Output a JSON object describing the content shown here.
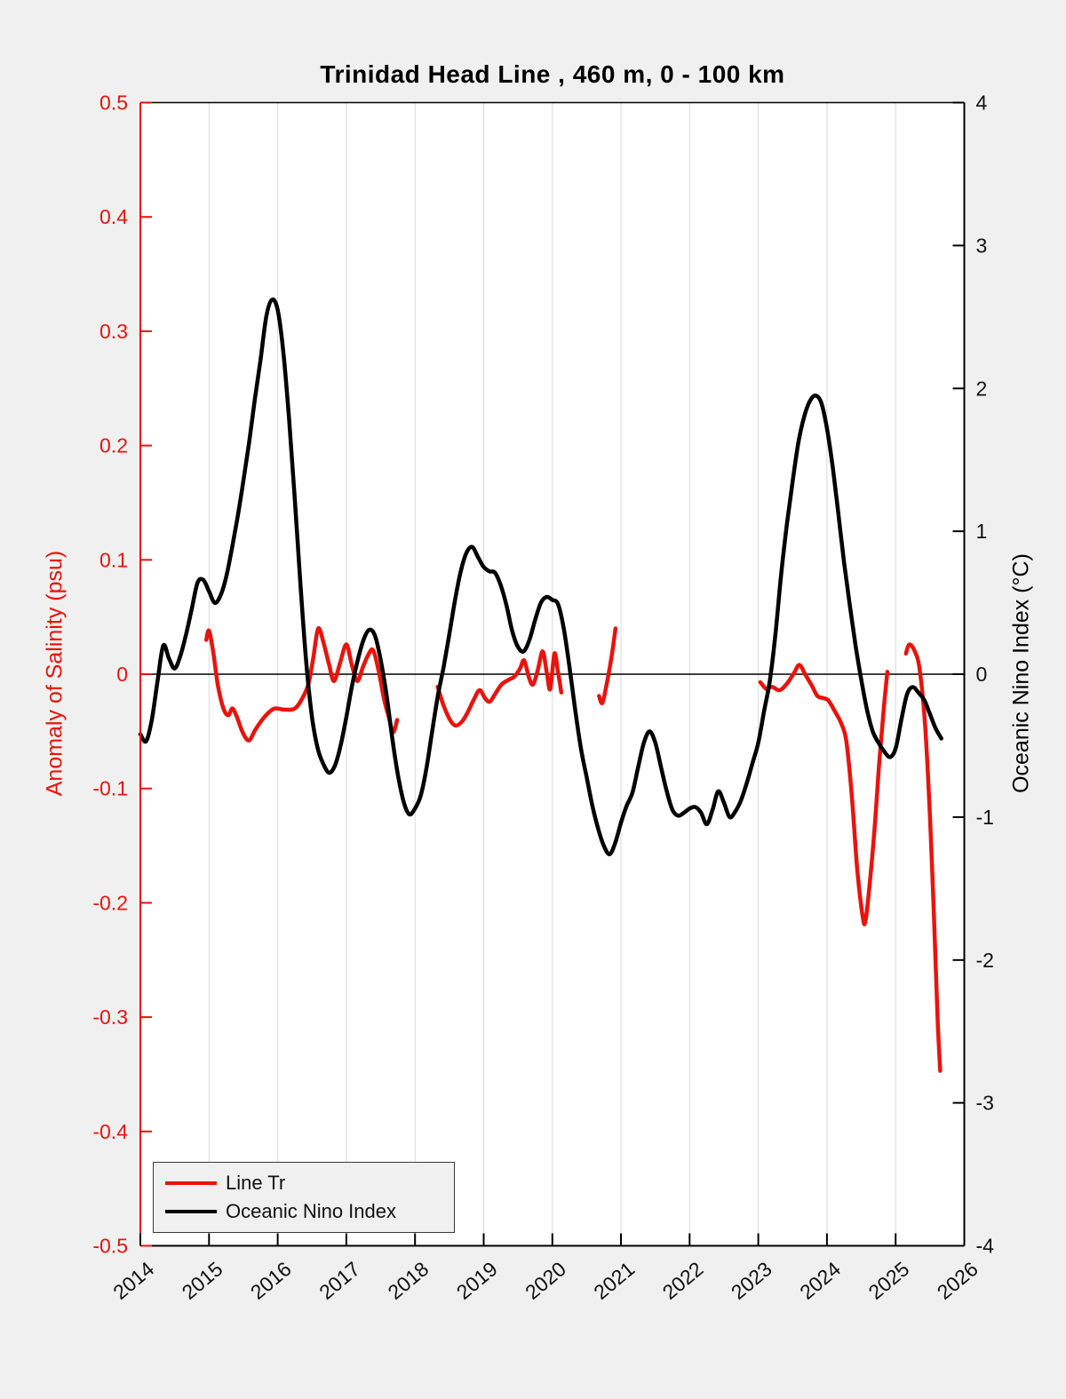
{
  "title": "Trinidad Head Line , 460 m, 0 - 100 km",
  "theme": {
    "figure_bg": "#f0f0f0",
    "plot_bg": "#ffffff",
    "grid_color": "#d9d9d9",
    "zero_line_color": "#000000",
    "spine_color": "#000000",
    "text_color": "#111111",
    "legend_border": "#3a3a3a",
    "accent_red": "#ea130c"
  },
  "chart_data": {
    "type": "line",
    "title": "Trinidad Head Line , 460 m, 0 - 100 km",
    "grid": "vertical-year-gridlines",
    "zero_line": true,
    "x_axis": {
      "label": "",
      "lim": [
        2014,
        2026
      ],
      "ticks": [
        "2014",
        "2015",
        "2016",
        "2017",
        "2018",
        "2019",
        "2020",
        "2021",
        "2022",
        "2023",
        "2024",
        "2025",
        "2026"
      ],
      "tick_rotation_deg": 40
    },
    "y_axis_left": {
      "label": "Anomaly of Salinity (psu)",
      "color": "#ea130c",
      "lim": [
        -0.5,
        0.5
      ],
      "ticks": [
        "0.5",
        "0.4",
        "0.3",
        "0.2",
        "0.1",
        "0",
        "-0.1",
        "-0.2",
        "-0.3",
        "-0.4",
        "-0.5"
      ]
    },
    "y_axis_right": {
      "label": "Oceanic Nino Index (°C)",
      "color": "#000000",
      "lim": [
        -4,
        4
      ],
      "ticks": [
        "4",
        "3",
        "2",
        "1",
        "0",
        "-1",
        "-2",
        "-3",
        "-4"
      ]
    },
    "legend": {
      "position": "bottom-left",
      "entries": [
        "Line Tr",
        "Oceanic Nino Index"
      ]
    },
    "series": [
      {
        "name": "Line Tr",
        "axis": "left",
        "unit": "psu",
        "color": "#ea130c",
        "segments": [
          [
            [
              2014.96,
              0.03
            ],
            [
              2015.0,
              0.038
            ],
            [
              2015.06,
              0.02
            ],
            [
              2015.13,
              -0.01
            ],
            [
              2015.21,
              -0.03
            ],
            [
              2015.28,
              -0.036
            ],
            [
              2015.34,
              -0.03
            ],
            [
              2015.41,
              -0.038
            ],
            [
              2015.49,
              -0.051
            ],
            [
              2015.58,
              -0.058
            ],
            [
              2015.67,
              -0.049
            ],
            [
              2015.76,
              -0.041
            ],
            [
              2015.86,
              -0.034
            ],
            [
              2015.96,
              -0.03
            ],
            [
              2016.1,
              -0.031
            ],
            [
              2016.25,
              -0.03
            ],
            [
              2016.36,
              -0.021
            ],
            [
              2016.45,
              -0.008
            ],
            [
              2016.52,
              0.015
            ],
            [
              2016.59,
              0.04
            ],
            [
              2016.67,
              0.027
            ],
            [
              2016.75,
              0.008
            ],
            [
              2016.82,
              -0.006
            ],
            [
              2016.91,
              0.01
            ],
            [
              2017.0,
              0.026
            ],
            [
              2017.08,
              0.008
            ],
            [
              2017.16,
              -0.006
            ],
            [
              2017.24,
              0.006
            ],
            [
              2017.32,
              0.017
            ],
            [
              2017.39,
              0.021
            ],
            [
              2017.47,
              0.003
            ],
            [
              2017.55,
              -0.022
            ],
            [
              2017.62,
              -0.038
            ],
            [
              2017.68,
              -0.051
            ],
            [
              2017.74,
              -0.04
            ]
          ],
          [
            [
              2018.33,
              -0.011
            ],
            [
              2018.42,
              -0.028
            ],
            [
              2018.52,
              -0.041
            ],
            [
              2018.6,
              -0.045
            ],
            [
              2018.69,
              -0.041
            ],
            [
              2018.77,
              -0.033
            ],
            [
              2018.85,
              -0.023
            ],
            [
              2018.94,
              -0.014
            ],
            [
              2019.02,
              -0.021
            ],
            [
              2019.09,
              -0.024
            ],
            [
              2019.17,
              -0.017
            ],
            [
              2019.26,
              -0.009
            ],
            [
              2019.36,
              -0.005
            ],
            [
              2019.45,
              -0.002
            ],
            [
              2019.53,
              0.005
            ],
            [
              2019.59,
              0.012
            ],
            [
              2019.66,
              -0.003
            ],
            [
              2019.72,
              -0.009
            ],
            [
              2019.79,
              0.004
            ],
            [
              2019.86,
              0.02
            ],
            [
              2019.92,
              0.001
            ],
            [
              2019.97,
              -0.013
            ],
            [
              2020.03,
              0.018
            ],
            [
              2020.08,
              0.003
            ],
            [
              2020.13,
              -0.016
            ]
          ],
          [
            [
              2020.68,
              -0.019
            ],
            [
              2020.73,
              -0.025
            ],
            [
              2020.8,
              -0.006
            ],
            [
              2020.87,
              0.018
            ],
            [
              2020.92,
              0.04
            ]
          ],
          [
            [
              2023.03,
              -0.007
            ],
            [
              2023.12,
              -0.013
            ],
            [
              2023.2,
              -0.011
            ],
            [
              2023.31,
              -0.014
            ],
            [
              2023.42,
              -0.008
            ],
            [
              2023.52,
              0.001
            ],
            [
              2023.6,
              0.008
            ],
            [
              2023.69,
              -0.001
            ],
            [
              2023.78,
              -0.01
            ],
            [
              2023.86,
              -0.019
            ],
            [
              2023.95,
              -0.021
            ],
            [
              2024.02,
              -0.023
            ],
            [
              2024.12,
              -0.033
            ],
            [
              2024.2,
              -0.042
            ],
            [
              2024.28,
              -0.058
            ],
            [
              2024.36,
              -0.105
            ],
            [
              2024.44,
              -0.17
            ],
            [
              2024.52,
              -0.212
            ],
            [
              2024.56,
              -0.216
            ],
            [
              2024.62,
              -0.185
            ],
            [
              2024.69,
              -0.138
            ],
            [
              2024.76,
              -0.078
            ],
            [
              2024.83,
              -0.028
            ],
            [
              2024.88,
              0.002
            ]
          ],
          [
            [
              2025.15,
              0.018
            ],
            [
              2025.2,
              0.026
            ],
            [
              2025.28,
              0.02
            ],
            [
              2025.35,
              0.004
            ],
            [
              2025.43,
              -0.045
            ],
            [
              2025.5,
              -0.125
            ],
            [
              2025.56,
              -0.215
            ],
            [
              2025.61,
              -0.3
            ],
            [
              2025.65,
              -0.347
            ]
          ]
        ]
      },
      {
        "name": "Oceanic Nino Index",
        "axis": "right",
        "unit": "°C",
        "color": "#000000",
        "x_start": 2014.0,
        "x_step_years": 0.0833333,
        "values": [
          -0.42,
          -0.47,
          -0.32,
          -0.05,
          0.2,
          0.11,
          0.04,
          0.13,
          0.28,
          0.46,
          0.64,
          0.66,
          0.58,
          0.5,
          0.55,
          0.68,
          0.88,
          1.1,
          1.35,
          1.62,
          1.92,
          2.2,
          2.5,
          2.62,
          2.55,
          2.25,
          1.78,
          1.22,
          0.62,
          0.08,
          -0.3,
          -0.52,
          -0.63,
          -0.69,
          -0.64,
          -0.5,
          -0.3,
          -0.08,
          0.1,
          0.24,
          0.31,
          0.27,
          0.1,
          -0.14,
          -0.44,
          -0.7,
          -0.89,
          -0.98,
          -0.94,
          -0.85,
          -0.66,
          -0.4,
          -0.15,
          0.05,
          0.28,
          0.52,
          0.72,
          0.85,
          0.89,
          0.82,
          0.75,
          0.72,
          0.71,
          0.62,
          0.48,
          0.3,
          0.19,
          0.16,
          0.24,
          0.38,
          0.5,
          0.54,
          0.52,
          0.49,
          0.32,
          0.05,
          -0.25,
          -0.52,
          -0.72,
          -0.92,
          -1.08,
          -1.2,
          -1.26,
          -1.18,
          -1.04,
          -0.92,
          -0.83,
          -0.65,
          -0.48,
          -0.4,
          -0.48,
          -0.65,
          -0.82,
          -0.95,
          -0.99,
          -0.97,
          -0.94,
          -0.93,
          -0.97,
          -1.05,
          -0.95,
          -0.82,
          -0.9,
          -1.0,
          -0.96,
          -0.88,
          -0.76,
          -0.62,
          -0.48,
          -0.26,
          -0.05,
          0.28,
          0.7,
          1.05,
          1.35,
          1.62,
          1.8,
          1.91,
          1.95,
          1.9,
          1.72,
          1.45,
          1.12,
          0.78,
          0.48,
          0.2,
          -0.04,
          -0.25,
          -0.4,
          -0.48,
          -0.54,
          -0.58,
          -0.52,
          -0.32,
          -0.14,
          -0.09,
          -0.13,
          -0.18,
          -0.28,
          -0.38,
          -0.45
        ]
      }
    ]
  }
}
